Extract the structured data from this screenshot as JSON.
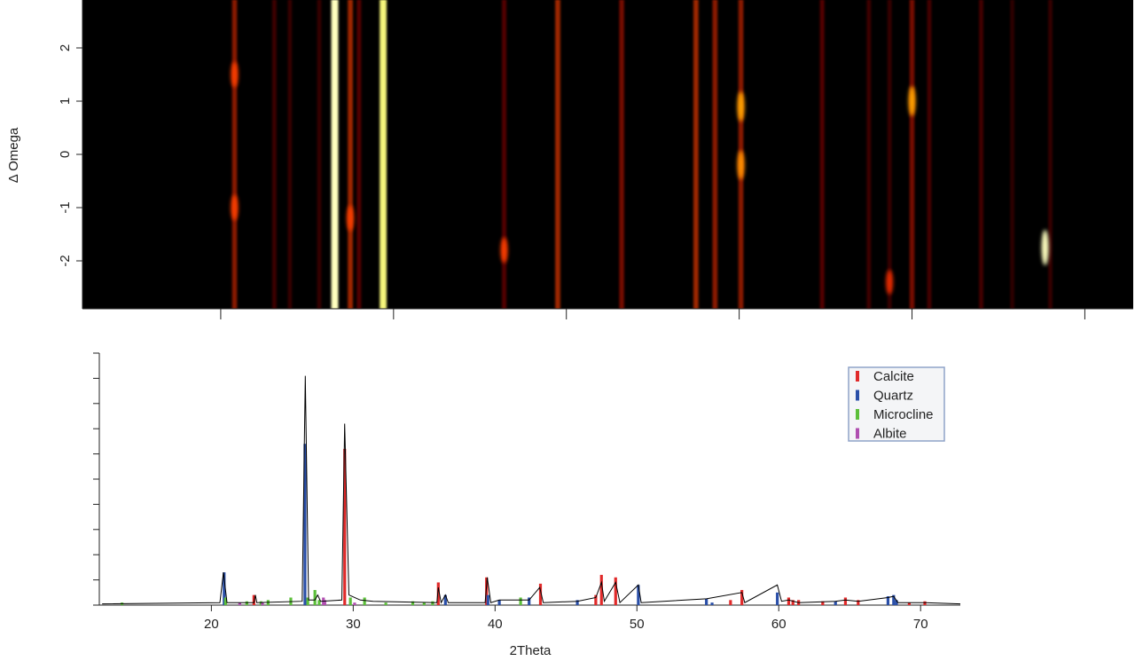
{
  "chart_data": [
    {
      "type": "heatmap",
      "y_label": "Δ Omega",
      "xlim": [
        12,
        72.8
      ],
      "ylim": [
        -2.9,
        2.9
      ],
      "xticks": [
        20,
        30,
        40,
        50,
        60,
        70
      ],
      "yticks": [
        -2,
        -1,
        0,
        1,
        2
      ],
      "x": [
        20.8,
        23.1,
        24.0,
        25.7,
        26.6,
        27.5,
        28.0,
        29.4,
        36.4,
        39.5,
        43.2,
        47.5,
        48.6,
        50.1,
        54.8,
        57.5,
        58.7,
        60.0,
        61.0,
        64.0,
        65.8,
        68.0
      ],
      "values": [
        40,
        18,
        15,
        15,
        100,
        45,
        25,
        95,
        25,
        45,
        35,
        45,
        40,
        40,
        25,
        18,
        15,
        35,
        20,
        20,
        12,
        15
      ],
      "spots": {
        "x": [
          67.7,
          50.1,
          50.1,
          60.0,
          36.4,
          20.8,
          20.8,
          27.5,
          58.7
        ],
        "y": [
          -1.75,
          0.9,
          -0.2,
          1.0,
          -1.8,
          1.5,
          -1.0,
          -1.2,
          -2.4
        ],
        "values": [
          100,
          70,
          65,
          70,
          45,
          45,
          45,
          45,
          40
        ]
      }
    },
    {
      "type": "line",
      "x_label": "2Theta",
      "xlim": [
        12.1,
        72.8
      ],
      "ylim": [
        0,
        100
      ],
      "xticks": [
        20,
        30,
        40,
        50,
        60,
        70
      ],
      "yticks": [
        0,
        10,
        20,
        30,
        40,
        50,
        60,
        70,
        80,
        90,
        100
      ],
      "curve": {
        "color": "#000000",
        "x": [
          12.3,
          20.6,
          20.85,
          21.1,
          23.0,
          23.1,
          23.2,
          26.4,
          26.62,
          26.85,
          27.3,
          27.5,
          27.7,
          29.2,
          29.4,
          29.7,
          30.5,
          31.4,
          35.9,
          36.0,
          36.2,
          36.5,
          36.7,
          39.3,
          39.45,
          39.7,
          40.3,
          42.4,
          43.15,
          43.4,
          45.8,
          47.1,
          47.5,
          47.7,
          48.5,
          48.8,
          50.1,
          50.3,
          54.9,
          57.4,
          57.6,
          59.9,
          60.2,
          60.7,
          61.4,
          64.0,
          64.7,
          65.6,
          67.7,
          68.1,
          68.4,
          70.3,
          72.8
        ],
        "values": [
          0.5,
          1,
          13,
          1,
          1,
          4,
          1,
          1.5,
          91,
          2,
          2,
          4,
          1.5,
          2,
          72,
          4,
          2,
          1.5,
          1,
          7,
          1,
          4,
          1,
          1,
          11,
          1,
          2,
          2,
          7,
          1,
          1.5,
          3,
          9,
          1.5,
          9,
          1,
          8,
          1,
          2.5,
          5,
          1,
          8,
          1.5,
          2,
          1,
          1.5,
          2,
          1.5,
          3,
          3.5,
          1,
          1,
          0.5
        ]
      },
      "series": [
        {
          "name": "Calcite",
          "color": "#e02a2a",
          "x": [
            23.0,
            29.4,
            36.0,
            39.4,
            43.2,
            47.1,
            47.5,
            48.5,
            56.6,
            57.4,
            60.7,
            61.0,
            61.4,
            63.1,
            64.7,
            65.6,
            69.2,
            70.3
          ],
          "values": [
            4,
            62,
            9,
            11,
            8.5,
            4,
            12,
            11,
            2,
            6,
            3,
            2,
            2,
            1.5,
            3,
            2,
            1,
            1.5
          ]
        },
        {
          "name": "Quartz",
          "color": "#2a4fa8",
          "x": [
            20.9,
            26.6,
            36.5,
            39.5,
            40.3,
            42.4,
            45.8,
            50.1,
            54.9,
            55.3,
            59.9,
            64.0,
            67.7,
            68.1,
            68.3
          ],
          "values": [
            13,
            64,
            4,
            4,
            2,
            3,
            2,
            8,
            2.5,
            1,
            5,
            1.5,
            3.5,
            4,
            2
          ]
        },
        {
          "name": "Microcline",
          "color": "#5cbf3a",
          "x": [
            13.7,
            21.0,
            22.5,
            23.5,
            24.0,
            25.6,
            26.8,
            27.3,
            27.6,
            29.8,
            30.8,
            32.3,
            34.2,
            35.0,
            35.6,
            41.8
          ],
          "values": [
            1,
            3,
            1.5,
            1.5,
            2,
            3,
            3,
            6,
            2,
            3,
            3,
            1,
            1.5,
            1,
            1.5,
            3
          ]
        },
        {
          "name": "Albite",
          "color": "#b04fb0",
          "x": [
            22.0,
            23.6,
            27.9,
            28.0,
            30.1
          ],
          "values": [
            1,
            1,
            3,
            2,
            1
          ]
        }
      ]
    }
  ]
}
